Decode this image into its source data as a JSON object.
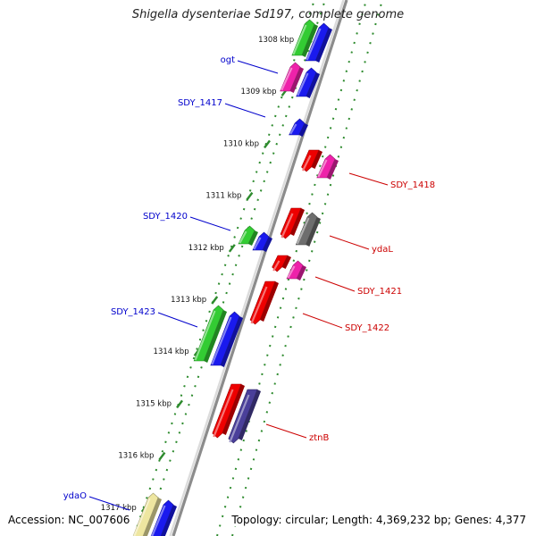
{
  "title": "Shigella dysenteriae Sd197, complete genome",
  "footer": {
    "accession": "Accession: NC_007606",
    "topology": "Topology: circular; Length: 4,369,232 bp; Genes: 4,377"
  },
  "colors": {
    "background": "#ffffff",
    "backbone": "#8c8c8c",
    "tick_dots": "#2e8b2e",
    "forward_label": "#0000cc",
    "reverse_label": "#cc0000",
    "gene_green": "#33cc33",
    "gene_blue": "#1a1aee",
    "gene_pink": "#ee22aa",
    "gene_red": "#ee0000",
    "gene_gray": "#6e6e6e",
    "gene_navy": "#4a3f9a",
    "gene_yellow": "#eee6a0"
  },
  "chart_data": {
    "type": "genome_map",
    "axis_unit": "kbp",
    "ticks": [
      {
        "label": "1308 kbp",
        "value": 1308
      },
      {
        "label": "1309 kbp",
        "value": 1309
      },
      {
        "label": "1310 kbp",
        "value": 1310
      },
      {
        "label": "1311 kbp",
        "value": 1311
      },
      {
        "label": "1312 kbp",
        "value": 1312
      },
      {
        "label": "1313 kbp",
        "value": 1313
      },
      {
        "label": "1314 kbp",
        "value": 1314
      },
      {
        "label": "1315 kbp",
        "value": 1315
      },
      {
        "label": "1316 kbp",
        "value": 1316
      },
      {
        "label": "1317 kbp",
        "value": 1317
      }
    ],
    "labeled_genes": [
      {
        "name": "ogt",
        "strand": "forward"
      },
      {
        "name": "SDY_1417",
        "strand": "forward"
      },
      {
        "name": "SDY_1418",
        "strand": "reverse"
      },
      {
        "name": "SDY_1420",
        "strand": "forward"
      },
      {
        "name": "ydaL",
        "strand": "reverse"
      },
      {
        "name": "SDY_1421",
        "strand": "reverse"
      },
      {
        "name": "SDY_1423",
        "strand": "forward"
      },
      {
        "name": "SDY_1422",
        "strand": "reverse"
      },
      {
        "name": "ztnB",
        "strand": "reverse"
      },
      {
        "name": "ydaO",
        "strand": "forward"
      }
    ]
  }
}
